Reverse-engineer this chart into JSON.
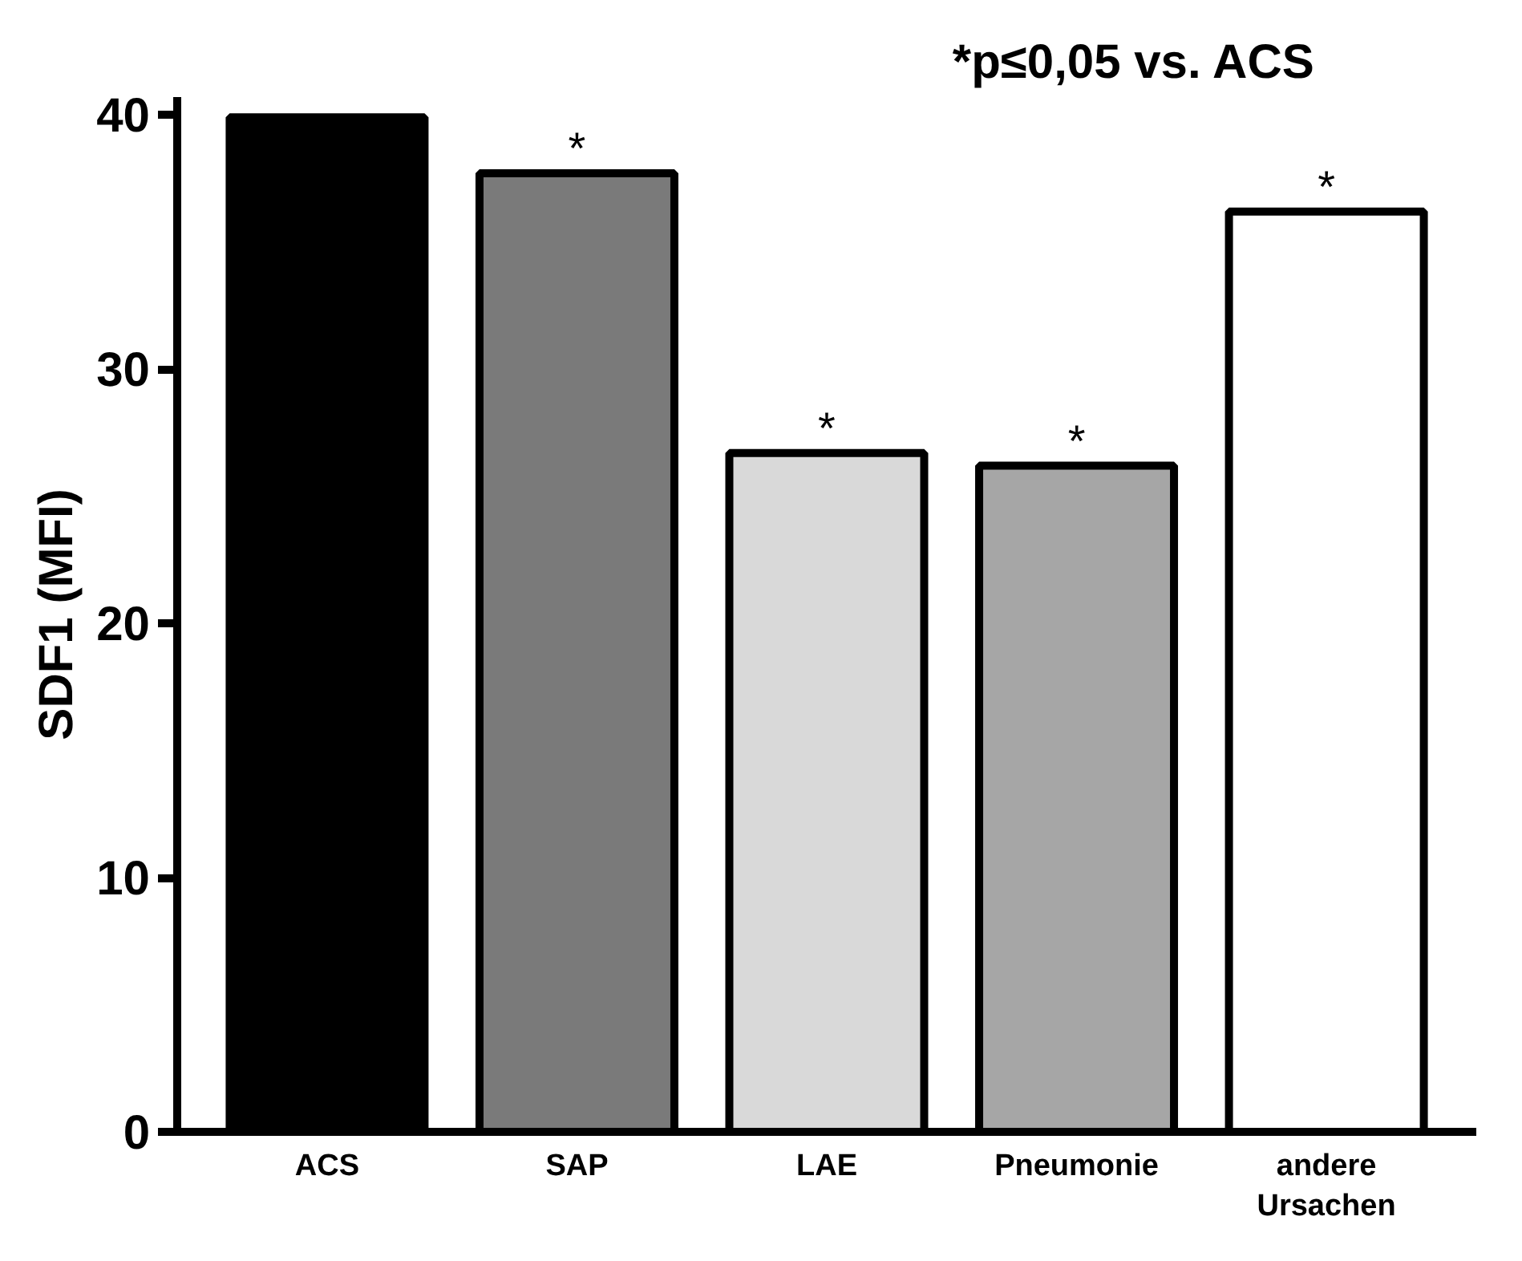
{
  "chart_data": {
    "type": "bar",
    "ylabel": "SDF1 (MFI)",
    "categories": [
      "ACS",
      "SAP",
      "LAE",
      "Pneumonie",
      "andere\nUrsachen"
    ],
    "values": [
      39.9,
      37.7,
      26.7,
      26.2,
      36.2
    ],
    "colors": [
      "#000000",
      "#7a7a7a",
      "#d9d9d9",
      "#a6a6a6",
      "#ffffff"
    ],
    "ylim": [
      0,
      40.7
    ],
    "yticks": [
      0,
      10,
      20,
      30,
      40
    ],
    "grid": false,
    "annotations": [
      "*p≤0,05 vs. ACS",
      {
        "text": "*",
        "x": "SAP",
        "y": 37.7
      },
      {
        "text": "*",
        "x": "LAE",
        "y": 26.7
      },
      {
        "text": "*",
        "x": "Pneumonie",
        "y": 26.2
      },
      {
        "text": "*",
        "x": "andere\nUrsachen",
        "y": 36.2
      }
    ]
  }
}
